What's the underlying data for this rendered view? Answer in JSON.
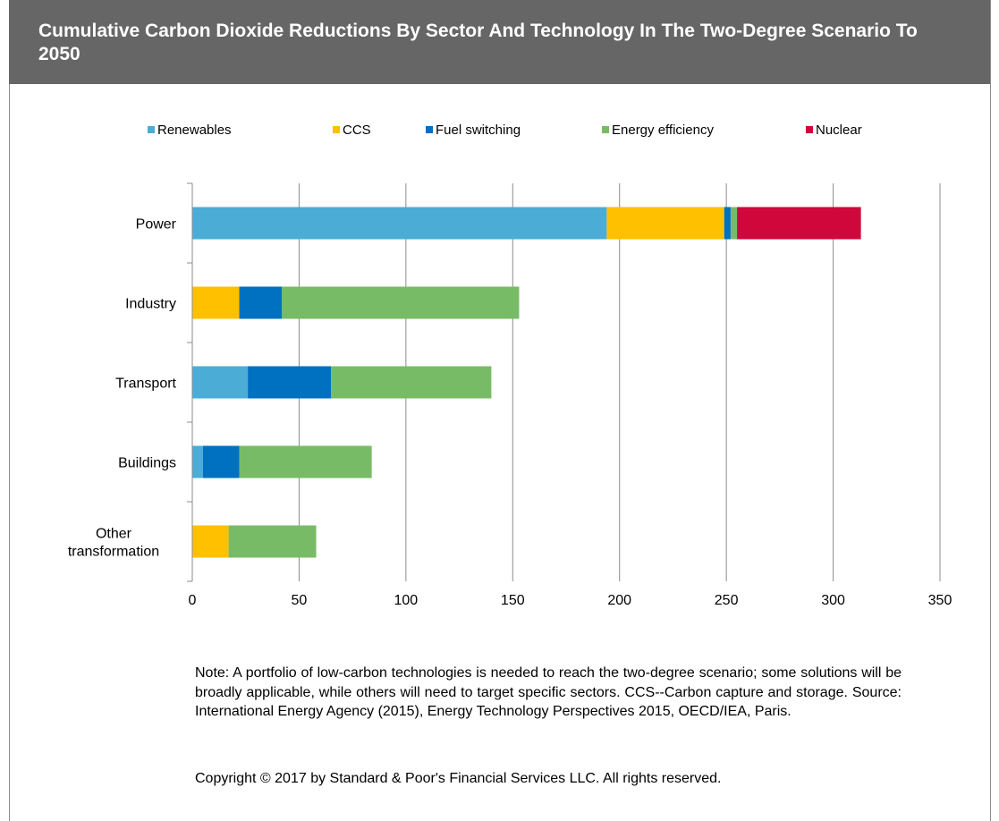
{
  "header": {
    "title": "Cumulative Carbon Dioxide Reductions By Sector And Technology In The Two-Degree Scenario To 2050"
  },
  "colors": {
    "header_bg": "#666666",
    "gridline": "#8c8c8c"
  },
  "chart_data": {
    "type": "bar",
    "orientation": "horizontal",
    "stacked": true,
    "categories": [
      "Power",
      "Industry",
      "Transport",
      "Buildings",
      "Other transformation"
    ],
    "series": [
      {
        "name": "Renewables",
        "color": "#4bacd6",
        "values": [
          194,
          0,
          26,
          5,
          0
        ]
      },
      {
        "name": "CCS",
        "color": "#ffc000",
        "values": [
          55,
          22,
          0,
          0,
          17
        ]
      },
      {
        "name": "Fuel switching",
        "color": "#0070c0",
        "values": [
          3,
          20,
          39,
          17,
          0
        ]
      },
      {
        "name": "Energy efficiency",
        "color": "#77bb66",
        "values": [
          3,
          111,
          75,
          62,
          41
        ]
      },
      {
        "name": "Nuclear",
        "color": "#d0073a",
        "values": [
          58,
          0,
          0,
          0,
          0
        ]
      }
    ],
    "xlim": [
      0,
      350
    ],
    "xticks": [
      0,
      50,
      100,
      150,
      200,
      250,
      300,
      350
    ],
    "grid": true,
    "legend_position": "top"
  },
  "note": "Note: A portfolio of low-carbon technologies is needed to reach the two-degree scenario; some solutions will be broadly applicable, while others will need to target specific sectors. CCS--Carbon capture and storage. Source: International Energy Agency (2015), Energy Technology Perspectives 2015, OECD/IEA, Paris.",
  "copyright": "Copyright © 2017 by Standard & Poor's Financial Services LLC. All rights reserved."
}
